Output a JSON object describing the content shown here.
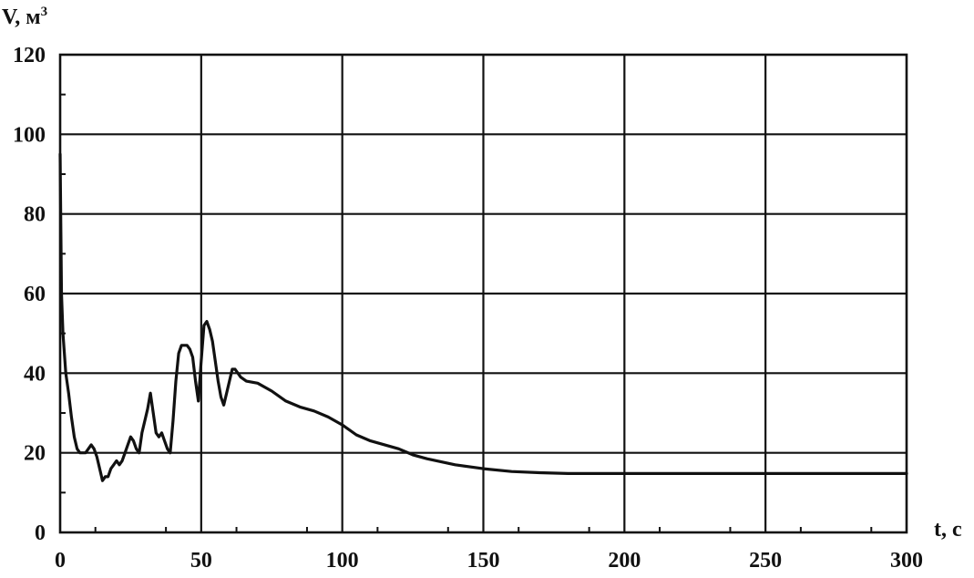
{
  "chart_data": {
    "type": "line",
    "ylabel": "V, м",
    "ylabel_sup": "3",
    "xlabel": "t, c",
    "xlim": [
      0,
      300
    ],
    "ylim": [
      0,
      120
    ],
    "x_ticks": [
      0,
      50,
      100,
      150,
      200,
      250,
      300
    ],
    "y_ticks": [
      0,
      20,
      40,
      60,
      80,
      100,
      120
    ],
    "x_tick_labels": [
      "0",
      "50",
      "100",
      "150",
      "200",
      "250",
      "300"
    ],
    "y_tick_labels": [
      "0",
      "20",
      "40",
      "60",
      "80",
      "100",
      "120"
    ],
    "grid": true,
    "legend": "none",
    "series": [
      {
        "x": [
          0,
          0.5,
          1,
          2,
          3,
          4,
          5,
          6,
          7,
          8,
          9,
          10,
          11,
          12,
          13,
          14,
          15,
          16,
          17,
          18,
          19,
          20,
          21,
          22,
          23,
          24,
          25,
          26,
          27,
          28,
          29,
          30,
          31,
          32,
          33,
          34,
          35,
          36,
          37,
          38,
          39,
          40,
          41,
          42,
          43,
          44,
          45,
          46,
          47,
          48,
          49,
          50,
          51,
          52,
          53,
          54,
          55,
          56,
          57,
          58,
          59,
          60,
          61,
          62,
          64,
          66,
          70,
          75,
          80,
          85,
          90,
          95,
          100,
          105,
          110,
          115,
          120,
          125,
          130,
          140,
          150,
          160,
          170,
          180,
          200,
          220,
          240,
          260,
          280,
          300
        ],
        "y": [
          95,
          60,
          50,
          40,
          35,
          29,
          24,
          21,
          20,
          20,
          20,
          21,
          22,
          21,
          19,
          16,
          13,
          14,
          14,
          16,
          17,
          18,
          17,
          18,
          20,
          22,
          24,
          23,
          21,
          20,
          25,
          28,
          31,
          35,
          30,
          25,
          24,
          25,
          23,
          21,
          20,
          28,
          38,
          45,
          47,
          47,
          47,
          46,
          44,
          38,
          33,
          43,
          52,
          53,
          51,
          48,
          43,
          38,
          34,
          32,
          35,
          38,
          41,
          41,
          39,
          38,
          37.5,
          35.5,
          33,
          31.5,
          30.5,
          29,
          27,
          24.5,
          23,
          22,
          21,
          19.5,
          18.5,
          17,
          16,
          15.3,
          15,
          14.8,
          14.8,
          14.8,
          14.8,
          14.8,
          14.8,
          14.8
        ]
      }
    ]
  }
}
